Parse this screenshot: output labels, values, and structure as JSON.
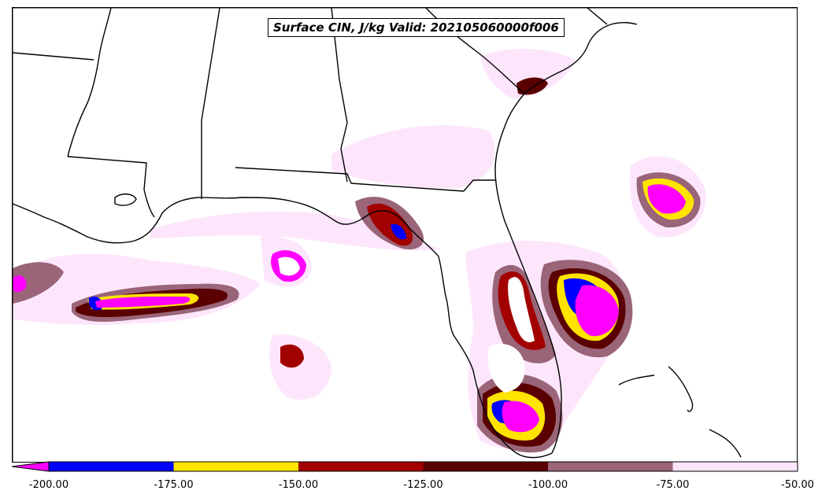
{
  "title": "Surface CIN, J/kg Valid: 202105060000f006",
  "colorbar": {
    "min": -200,
    "max": -50,
    "extend": "min",
    "extend_color": "#ff00ff",
    "ticks": [
      "-200.00",
      "-175.00",
      "-150.00",
      "-125.00",
      "-100.00",
      "-75.00",
      "-50.00"
    ],
    "bins": [
      {
        "from": -200,
        "to": -175,
        "color": "#0000ff"
      },
      {
        "from": -175,
        "to": -150,
        "color": "#ffe400"
      },
      {
        "from": -150,
        "to": -125,
        "color": "#a30000"
      },
      {
        "from": -125,
        "to": -100,
        "color": "#5a0000"
      },
      {
        "from": -100,
        "to": -75,
        "color": "#9a6578"
      },
      {
        "from": -75,
        "to": -50,
        "color": "#fde6fb"
      }
    ]
  }
}
